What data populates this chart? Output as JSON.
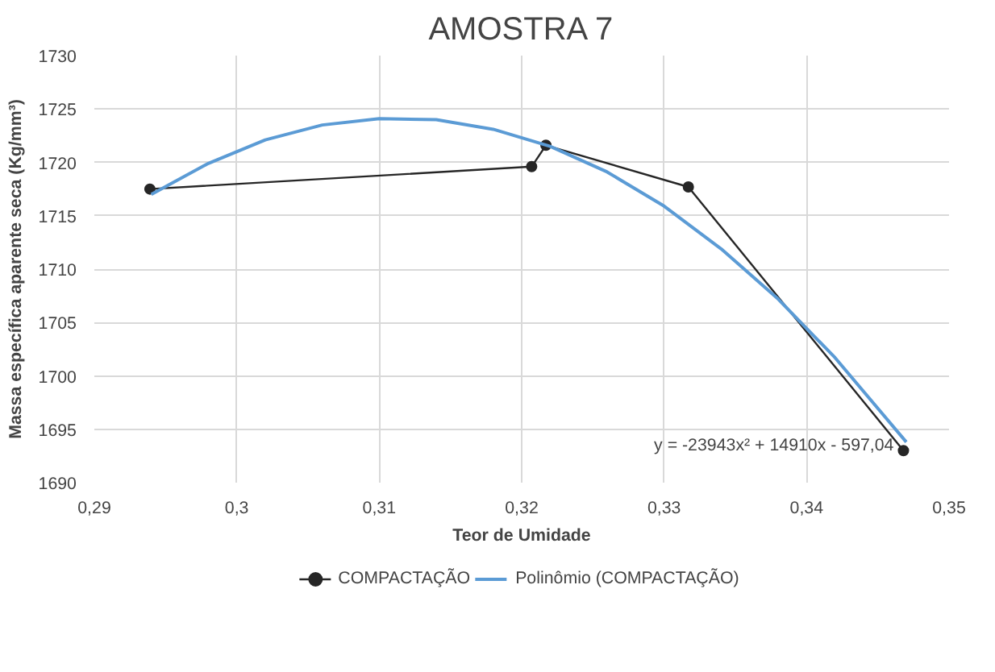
{
  "chart_data": {
    "type": "line",
    "title": "AMOSTRA 7",
    "xlabel": "Teor de Umidade",
    "ylabel": "Massa específica aparente seca (Kg/mm³)",
    "xlim": [
      0.29,
      0.35
    ],
    "xticks": [
      {
        "value": 0.29,
        "label": "0,29"
      },
      {
        "value": 0.3,
        "label": "0,3"
      },
      {
        "value": 0.31,
        "label": "0,31"
      },
      {
        "value": 0.32,
        "label": "0,32"
      },
      {
        "value": 0.33,
        "label": "0,33"
      },
      {
        "value": 0.34,
        "label": "0,34"
      },
      {
        "value": 0.35,
        "label": "0,35"
      }
    ],
    "ylim": [
      1690,
      1730
    ],
    "yticks": [
      1690,
      1695,
      1700,
      1705,
      1710,
      1715,
      1720,
      1725,
      1730
    ],
    "grid": true,
    "legend": "bottom",
    "series": [
      {
        "name": "COMPACTAÇÃO",
        "color": "#262626",
        "marker": "circle",
        "x": [
          0.2939,
          0.3207,
          0.3217,
          0.3317,
          0.3468
        ],
        "values": [
          1717.5,
          1719.6,
          1721.6,
          1717.7,
          1693.0
        ]
      },
      {
        "name": "Polinômio (COMPACTAÇÃO)",
        "color": "#5b9bd5",
        "marker": "none",
        "x": [
          0.294,
          0.298,
          0.302,
          0.306,
          0.31,
          0.314,
          0.318,
          0.322,
          0.326,
          0.33,
          0.334,
          0.338,
          0.342,
          0.347
        ],
        "values": [
          1717.0,
          1719.9,
          1722.1,
          1723.5,
          1724.1,
          1724.0,
          1723.1,
          1721.5,
          1719.1,
          1715.9,
          1711.9,
          1707.2,
          1701.7,
          1693.8
        ]
      }
    ],
    "annotations": [
      {
        "text": "y = -23943x² + 14910x - 597,04",
        "x": 0.3468,
        "y": 1693.8
      }
    ]
  }
}
